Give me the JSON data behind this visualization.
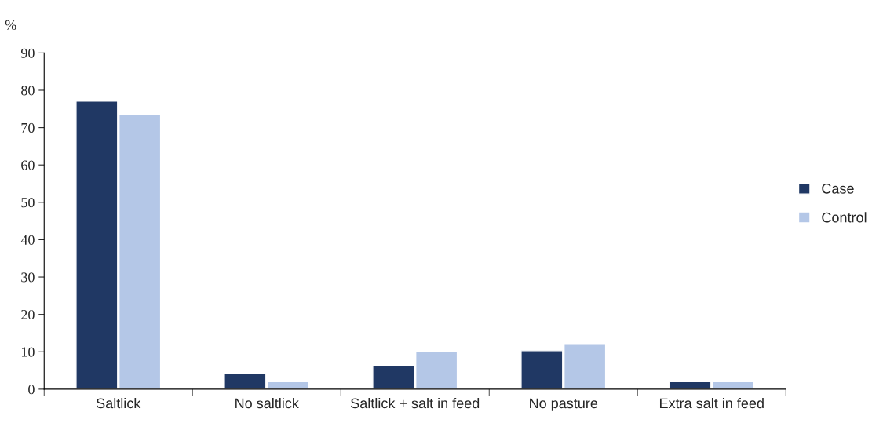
{
  "chart_data": {
    "type": "bar",
    "ylabel": "%",
    "categories": [
      "Saltlick",
      "No saltlick",
      "Saltlick + salt in feed",
      "No pasture",
      "Extra salt in feed"
    ],
    "series": [
      {
        "name": "Case",
        "color": "#203864",
        "values": [
          77.1,
          4.1,
          6.2,
          10.3,
          2.0
        ]
      },
      {
        "name": "Control",
        "color": "#b4c7e7",
        "values": [
          73.4,
          2.0,
          10.2,
          12.2,
          2.0
        ]
      }
    ],
    "ylim": [
      0,
      90
    ],
    "yticks": [
      0,
      10,
      20,
      30,
      40,
      50,
      60,
      70,
      80,
      90
    ],
    "grid": false,
    "legend": "right"
  }
}
